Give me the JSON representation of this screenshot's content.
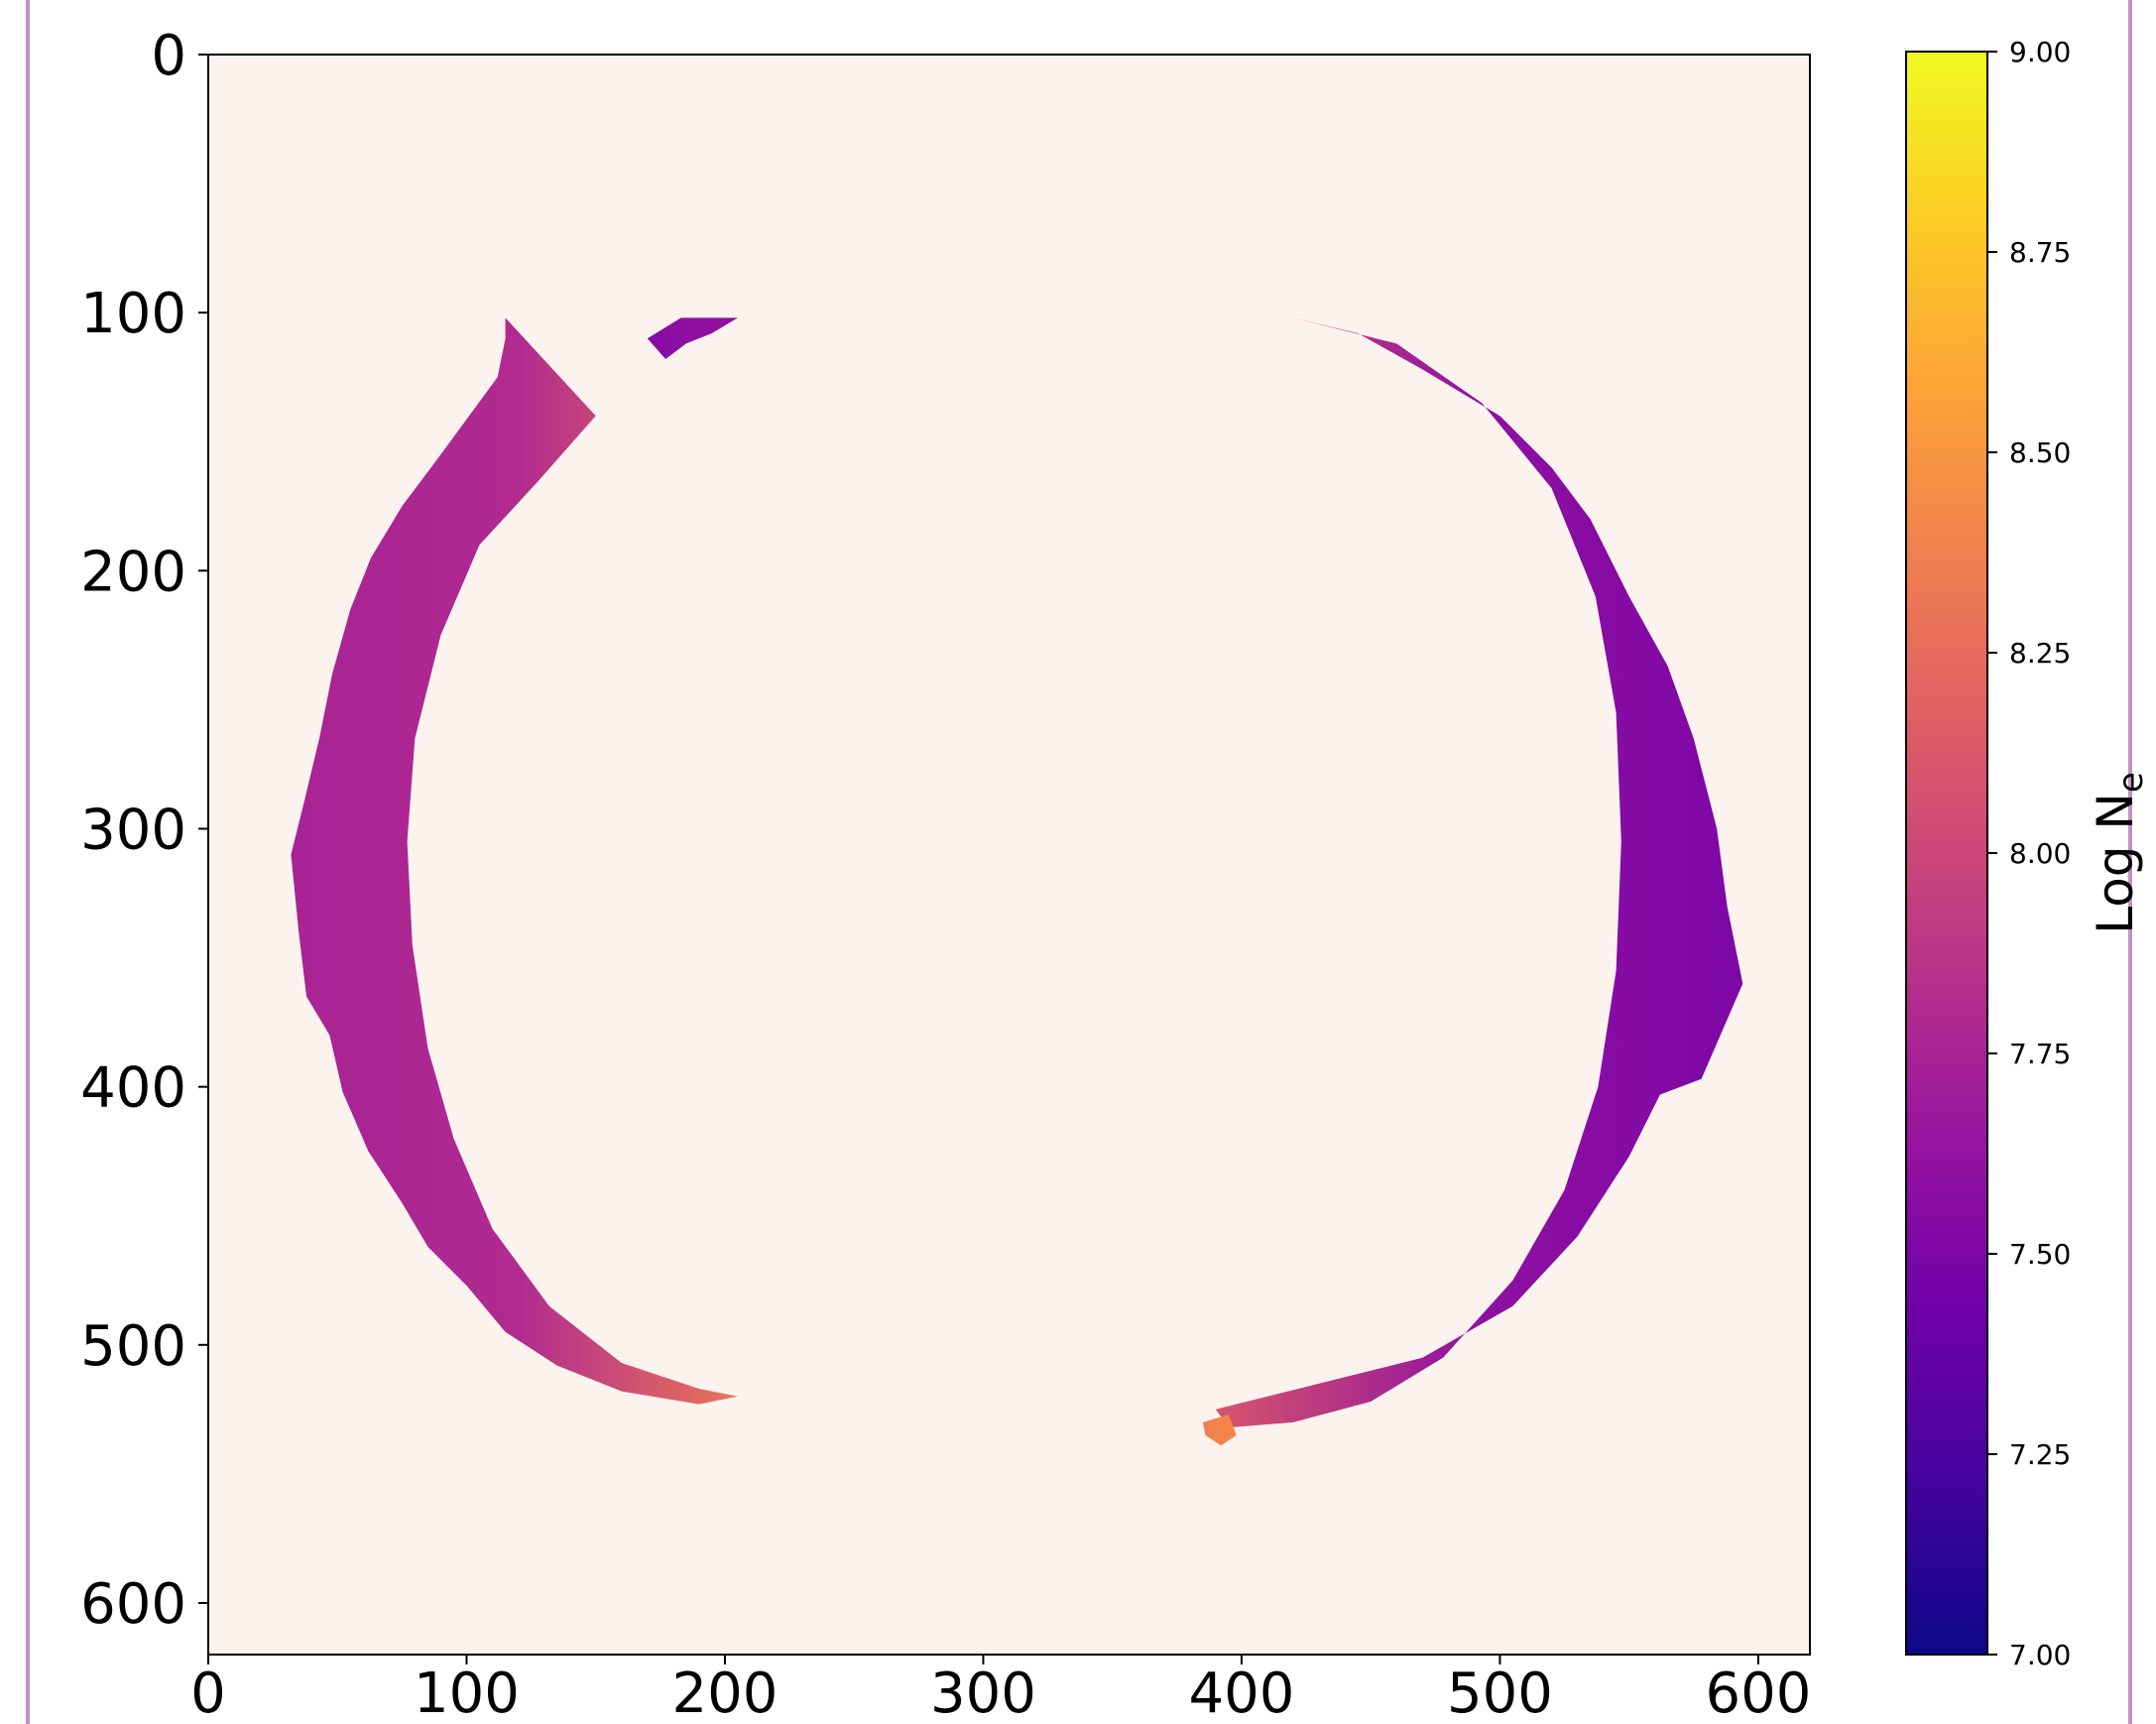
{
  "chart_data": {
    "type": "heatmap",
    "title": "",
    "xlabel": "",
    "ylabel": "",
    "xlim": [
      0,
      620
    ],
    "ylim": [
      620,
      0
    ],
    "x_ticks": [
      "0",
      "100",
      "200",
      "300",
      "400",
      "500",
      "600"
    ],
    "y_ticks": [
      "0",
      "100",
      "200",
      "300",
      "400",
      "500",
      "600"
    ],
    "background_color": "#fdf3ee",
    "colormap": "plasma",
    "colorbar": {
      "label": "Log N",
      "label_subscript": "e",
      "range": [
        7.0,
        9.0
      ],
      "ticks": [
        "7.00",
        "7.25",
        "7.50",
        "7.75",
        "8.00",
        "8.25",
        "8.50",
        "8.75",
        "9.00"
      ],
      "colors": [
        "#0d0887",
        "#46039f",
        "#7201a8",
        "#9c179e",
        "#bd3786",
        "#d8576b",
        "#ed7953",
        "#fb9f3a",
        "#fdca26",
        "#f0f921"
      ]
    },
    "regions": [
      {
        "name": "left-arc",
        "typical_log_ne": 7.8,
        "outer": [
          [
            115,
            102
          ],
          [
            150,
            140
          ],
          [
            128,
            165
          ],
          [
            105,
            190
          ],
          [
            90,
            225
          ],
          [
            80,
            265
          ],
          [
            77,
            305
          ],
          [
            79,
            345
          ],
          [
            85,
            385
          ],
          [
            95,
            420
          ],
          [
            110,
            455
          ],
          [
            132,
            485
          ],
          [
            160,
            507
          ],
          [
            190,
            517
          ],
          [
            205,
            520
          ],
          [
            190,
            523
          ],
          [
            160,
            518
          ],
          [
            135,
            508
          ],
          [
            115,
            495
          ],
          [
            100,
            477
          ],
          [
            85,
            462
          ],
          [
            75,
            445
          ],
          [
            62,
            425
          ],
          [
            52,
            402
          ],
          [
            47,
            380
          ],
          [
            38,
            365
          ],
          [
            35,
            340
          ],
          [
            32,
            310
          ],
          [
            37,
            290
          ],
          [
            43,
            265
          ],
          [
            48,
            240
          ],
          [
            55,
            215
          ],
          [
            63,
            195
          ],
          [
            75,
            175
          ],
          [
            90,
            155
          ],
          [
            112,
            125
          ],
          [
            115,
            110
          ]
        ],
        "inner_edge_log_ne": 8.3
      },
      {
        "name": "upper-fragment",
        "typical_log_ne": 7.6,
        "outer": [
          [
            170,
            110
          ],
          [
            183,
            102
          ],
          [
            205,
            102
          ],
          [
            195,
            108
          ],
          [
            185,
            112
          ],
          [
            177,
            118
          ]
        ]
      },
      {
        "name": "right-arc",
        "typical_log_ne": 7.6,
        "outer": [
          [
            420,
            102
          ],
          [
            460,
            112
          ],
          [
            493,
            135
          ],
          [
            520,
            168
          ],
          [
            537,
            210
          ],
          [
            545,
            255
          ],
          [
            547,
            305
          ],
          [
            545,
            355
          ],
          [
            538,
            400
          ],
          [
            525,
            440
          ],
          [
            505,
            475
          ],
          [
            478,
            505
          ],
          [
            450,
            522
          ],
          [
            420,
            530
          ],
          [
            395,
            532
          ],
          [
            390,
            525
          ],
          [
            430,
            515
          ],
          [
            470,
            505
          ],
          [
            505,
            485
          ],
          [
            530,
            458
          ],
          [
            550,
            427
          ],
          [
            562,
            403
          ],
          [
            578,
            397
          ],
          [
            594,
            360
          ],
          [
            588,
            330
          ],
          [
            584,
            300
          ],
          [
            575,
            265
          ],
          [
            565,
            237
          ],
          [
            550,
            210
          ],
          [
            535,
            180
          ],
          [
            520,
            160
          ],
          [
            500,
            140
          ],
          [
            470,
            122
          ],
          [
            445,
            108
          ]
        ],
        "inner_edge_log_ne": 8.1
      },
      {
        "name": "lower-right-fragment",
        "typical_log_ne": 8.4,
        "outer": [
          [
            385,
            530
          ],
          [
            395,
            527
          ],
          [
            398,
            535
          ],
          [
            392,
            539
          ],
          [
            386,
            535
          ]
        ]
      }
    ]
  }
}
